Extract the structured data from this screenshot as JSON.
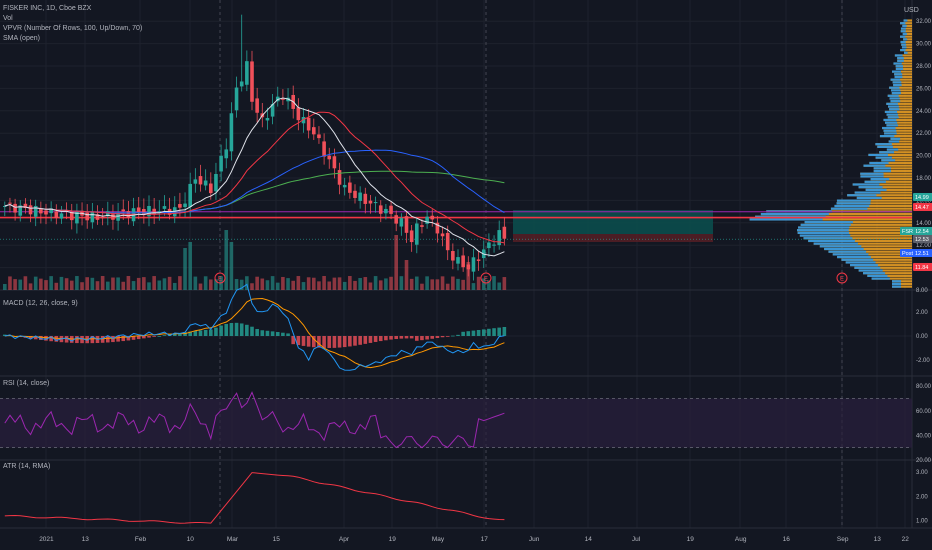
{
  "header": {
    "symbol": "FISKER INC, 1D, Cboe BZX",
    "vol": "Vol",
    "vpvr": "VPVR (Number Of Rows, 100, Up/Down, 70)",
    "sma": "SMA (open)",
    "currency": "USD"
  },
  "price_axis": {
    "ticks": [
      "32.00",
      "30.00",
      "28.00",
      "26.00",
      "24.00",
      "22.00",
      "20.00",
      "18.00",
      "16.00",
      "14.00",
      "12.00",
      "10.00",
      "8.00"
    ],
    "tags": [
      {
        "text": "14.99",
        "color": "#26a69a"
      },
      {
        "text": "14.47",
        "color": "#f23645"
      },
      {
        "text": "12.54",
        "color": "#26a69a"
      },
      {
        "text": "FSR",
        "color": "#26a69a"
      },
      {
        "text": "12.53",
        "color": "#5d606b"
      },
      {
        "text": "Post",
        "color": "#2962ff"
      },
      {
        "text": "12.51",
        "color": "#2962ff"
      },
      {
        "text": "11.84",
        "color": "#f23645"
      }
    ]
  },
  "panes": {
    "macd": {
      "label": "MACD (12, 26, close, 9)",
      "ticks": [
        "2.00",
        "0.00",
        "-2.00"
      ]
    },
    "rsi": {
      "label": "RSI (14, close)",
      "ticks": [
        "80.00",
        "60.00",
        "40.00",
        "20.00"
      ]
    },
    "atr": {
      "label": "ATR (14, RMA)",
      "ticks": [
        "3.00",
        "2.00",
        "1.00"
      ]
    }
  },
  "time_axis": [
    "2021",
    "13",
    "Feb",
    "10",
    "Mar",
    "15",
    "Apr",
    "19",
    "May",
    "17",
    "Jun",
    "14",
    "Jul",
    "19",
    "Aug",
    "16",
    "Sep",
    "13",
    "22"
  ],
  "event_markers": [
    "E",
    "E",
    "E"
  ],
  "colors": {
    "up": "#26a69a",
    "down": "#f0505a",
    "ma_white": "#e0e3eb",
    "ma_red": "#f23645",
    "ma_blue": "#2962ff",
    "ma_green": "#4caf50",
    "macd": "#2196f3",
    "signal": "#ff9800",
    "rsi": "#9c27b0",
    "atr": "#f23645",
    "vp_up": "#2196f3",
    "vp_down": "#f5a623"
  },
  "chart_data": [
    {
      "type": "candlestick",
      "title": "FISKER INC, 1D, Cboe BZX",
      "ylabel": "USD",
      "ylim": [
        8,
        33
      ],
      "period": [
        "2021-01-04",
        "2021-05-21"
      ],
      "x_ticks": [
        "2021",
        "13",
        "Feb",
        "10",
        "Mar",
        "15",
        "Apr",
        "19",
        "May",
        "17",
        "Jun",
        "14",
        "Jul",
        "19",
        "Aug",
        "16",
        "Sep",
        "13",
        "22"
      ],
      "price_range": [
        9.5,
        32
      ],
      "last_close": 12.54,
      "horizontal_levels": [
        14.47,
        14.99
      ],
      "key_prices": [
        {
          "date": "2021-01",
          "close": 15.5
        },
        {
          "date": "2021-02-10",
          "close": 17.2
        },
        {
          "date": "2021-03-01",
          "close": 26
        },
        {
          "date": "2021-03-02",
          "high": 32
        },
        {
          "date": "2021-03-15",
          "close": 24.8
        },
        {
          "date": "2021-04-19",
          "close": 12.3
        },
        {
          "date": "2021-05-12",
          "close": 10
        },
        {
          "date": "2021-05-21",
          "close": 12.54
        }
      ]
    },
    {
      "type": "line",
      "title": "MACD (12, 26, close, 9)",
      "ylim": [
        -2.5,
        2.8
      ],
      "series": [
        {
          "name": "MACD"
        },
        {
          "name": "Signal"
        },
        {
          "name": "Histogram"
        }
      ]
    },
    {
      "type": "line",
      "title": "RSI (14, close)",
      "ylim": [
        20,
        85
      ],
      "levels": [
        70,
        30
      ]
    },
    {
      "type": "line",
      "title": "ATR (14, RMA)",
      "ylim": [
        0.7,
        3.5
      ]
    }
  ]
}
